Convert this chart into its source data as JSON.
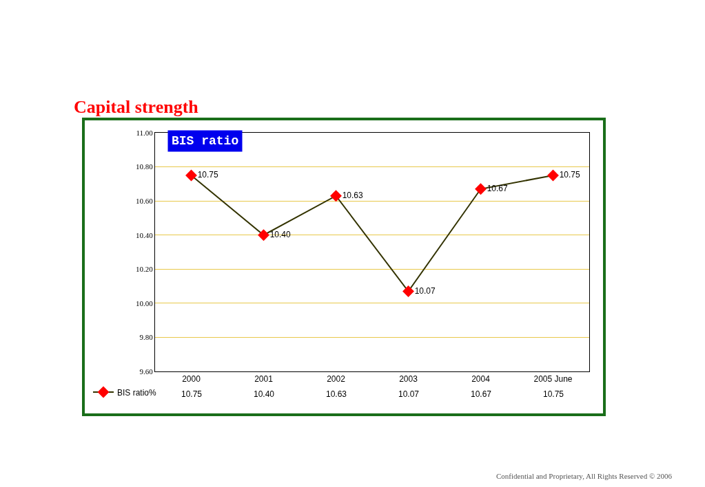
{
  "chart_data": {
    "type": "line",
    "title": "Capital strength",
    "subtitle": "BIS ratio",
    "categories": [
      "2000",
      "2001",
      "2002",
      "2003",
      "2004",
      "2005 June"
    ],
    "series": [
      {
        "name": "BIS ratio%",
        "color": "#ff0000",
        "values": [
          10.75,
          10.4,
          10.63,
          10.07,
          10.67,
          10.75
        ],
        "value_labels": [
          "10.75",
          "10.40",
          "10.63",
          "10.07",
          "10.67",
          "10.75"
        ]
      }
    ],
    "ylim": [
      9.6,
      11.0
    ],
    "yticks": [
      {
        "value": 9.6,
        "label": "9.60"
      },
      {
        "value": 9.8,
        "label": "9.80"
      },
      {
        "value": 10.0,
        "label": "10.00"
      },
      {
        "value": 10.2,
        "label": "10.20"
      },
      {
        "value": 10.4,
        "label": "10.40"
      },
      {
        "value": 10.6,
        "label": "10.60"
      },
      {
        "value": 10.8,
        "label": "10.80"
      },
      {
        "value": 11.0,
        "label": "11.00"
      }
    ],
    "grid": "y",
    "legend": "bottom left",
    "marker": "diamond",
    "line_style": "solid",
    "annotations": [
      "Confidential and Proprietary, All Rights Reserved © 2006"
    ]
  }
}
